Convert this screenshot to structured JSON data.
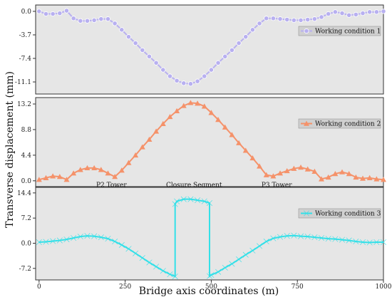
{
  "chart_data": {
    "type": "line",
    "xlabel": "Bridge axis coordinates (m)",
    "ylabel": "Transverse displacement (mm)",
    "xlim": [
      -10,
      1000
    ],
    "x_ticks": [
      "0",
      "250",
      "500",
      "750",
      "1000"
    ],
    "panels": [
      {
        "series_name": "Working condition 1",
        "color": "#b8b0f0",
        "marker": "circle",
        "ylim": [
          -13.0,
          1.0
        ],
        "y_ticks": [
          "0.0",
          "-3.7",
          "-7.4",
          "-11.1"
        ],
        "y_tick_values": [
          0.0,
          -3.7,
          -7.4,
          -11.1
        ],
        "x": [
          0,
          20,
          40,
          60,
          80,
          100,
          120,
          140,
          160,
          180,
          200,
          220,
          240,
          260,
          280,
          300,
          320,
          340,
          360,
          380,
          400,
          420,
          440,
          460,
          480,
          500,
          520,
          540,
          560,
          580,
          600,
          620,
          640,
          660,
          680,
          700,
          720,
          740,
          760,
          780,
          800,
          820,
          840,
          860,
          880,
          900,
          920,
          940,
          960,
          980,
          1000
        ],
        "y": [
          0.0,
          -0.4,
          -0.4,
          -0.3,
          0.1,
          -1.1,
          -1.5,
          -1.5,
          -1.4,
          -1.2,
          -1.2,
          -1.9,
          -2.9,
          -4.0,
          -5.0,
          -6.1,
          -7.1,
          -8.1,
          -9.2,
          -10.2,
          -10.9,
          -11.3,
          -11.4,
          -11.0,
          -10.2,
          -9.2,
          -8.1,
          -7.1,
          -6.1,
          -5.0,
          -4.0,
          -2.9,
          -1.9,
          -1.1,
          -1.1,
          -1.2,
          -1.3,
          -1.4,
          -1.4,
          -1.3,
          -1.2,
          -0.9,
          -0.4,
          -0.1,
          -0.3,
          -0.6,
          -0.5,
          -0.3,
          -0.1,
          -0.1,
          0.0
        ]
      },
      {
        "series_name": "Working condition 2",
        "color": "#f5926a",
        "marker": "triangle-up",
        "ylim": [
          -1.0,
          14.3
        ],
        "y_ticks": [
          "13.2",
          "8.8",
          "4.4",
          "0.0"
        ],
        "y_tick_values": [
          13.2,
          8.8,
          4.4,
          0.0
        ],
        "annotations": [
          {
            "text": "P2 Tower",
            "x": 210,
            "y": -0.7
          },
          {
            "text": "Closure Segment",
            "x": 450,
            "y": -0.7
          },
          {
            "text": "P3 Tower",
            "x": 690,
            "y": -0.7
          }
        ],
        "x": [
          0,
          20,
          40,
          60,
          80,
          100,
          120,
          140,
          160,
          180,
          200,
          220,
          240,
          260,
          280,
          300,
          320,
          340,
          360,
          380,
          400,
          420,
          440,
          460,
          480,
          500,
          520,
          540,
          560,
          580,
          600,
          620,
          640,
          660,
          680,
          700,
          720,
          740,
          760,
          780,
          800,
          820,
          840,
          860,
          880,
          900,
          920,
          940,
          960,
          980,
          1000
        ],
        "y": [
          0.2,
          0.5,
          0.8,
          0.7,
          0.2,
          1.3,
          1.9,
          2.2,
          2.2,
          1.9,
          1.3,
          0.7,
          1.8,
          3.1,
          4.4,
          5.8,
          7.1,
          8.5,
          9.8,
          11.0,
          12.0,
          12.9,
          13.4,
          13.3,
          12.8,
          11.7,
          10.5,
          9.2,
          7.9,
          6.5,
          5.2,
          3.9,
          2.5,
          1.0,
          0.8,
          1.3,
          1.7,
          2.1,
          2.3,
          2.0,
          1.6,
          0.3,
          0.6,
          1.2,
          1.5,
          1.2,
          0.6,
          0.4,
          0.5,
          0.3,
          0.2
        ]
      },
      {
        "series_name": "Working condition 3",
        "color": "#33e0e8",
        "marker": "bowtie",
        "ylim": [
          -10.5,
          16.0
        ],
        "y_ticks": [
          "14.4",
          "7.2",
          "0.0",
          "-7.2"
        ],
        "y_tick_values": [
          14.4,
          7.2,
          0.0,
          -7.2
        ],
        "x": [
          0,
          20,
          40,
          60,
          80,
          100,
          120,
          140,
          160,
          180,
          200,
          220,
          240,
          260,
          280,
          300,
          320,
          340,
          360,
          380,
          395,
          395,
          400,
          420,
          440,
          460,
          480,
          495,
          495,
          500,
          520,
          540,
          560,
          580,
          600,
          620,
          640,
          660,
          680,
          700,
          720,
          740,
          760,
          780,
          800,
          820,
          840,
          860,
          880,
          900,
          920,
          940,
          960,
          980,
          1000
        ],
        "y": [
          0.3,
          0.4,
          0.6,
          0.8,
          1.1,
          1.5,
          1.9,
          2.1,
          2.0,
          1.7,
          1.3,
          0.5,
          -0.5,
          -1.6,
          -2.9,
          -4.2,
          -5.5,
          -6.7,
          -7.9,
          -8.9,
          -9.5,
          11.2,
          12.0,
          12.6,
          12.6,
          12.3,
          12.0,
          11.5,
          -9.4,
          -9.1,
          -8.2,
          -7.0,
          -5.9,
          -4.6,
          -3.3,
          -2.1,
          -0.8,
          0.5,
          1.4,
          1.8,
          2.1,
          2.2,
          2.0,
          1.9,
          1.7,
          1.5,
          1.3,
          1.2,
          1.0,
          0.8,
          0.5,
          0.3,
          0.2,
          0.3,
          0.3
        ]
      }
    ]
  }
}
